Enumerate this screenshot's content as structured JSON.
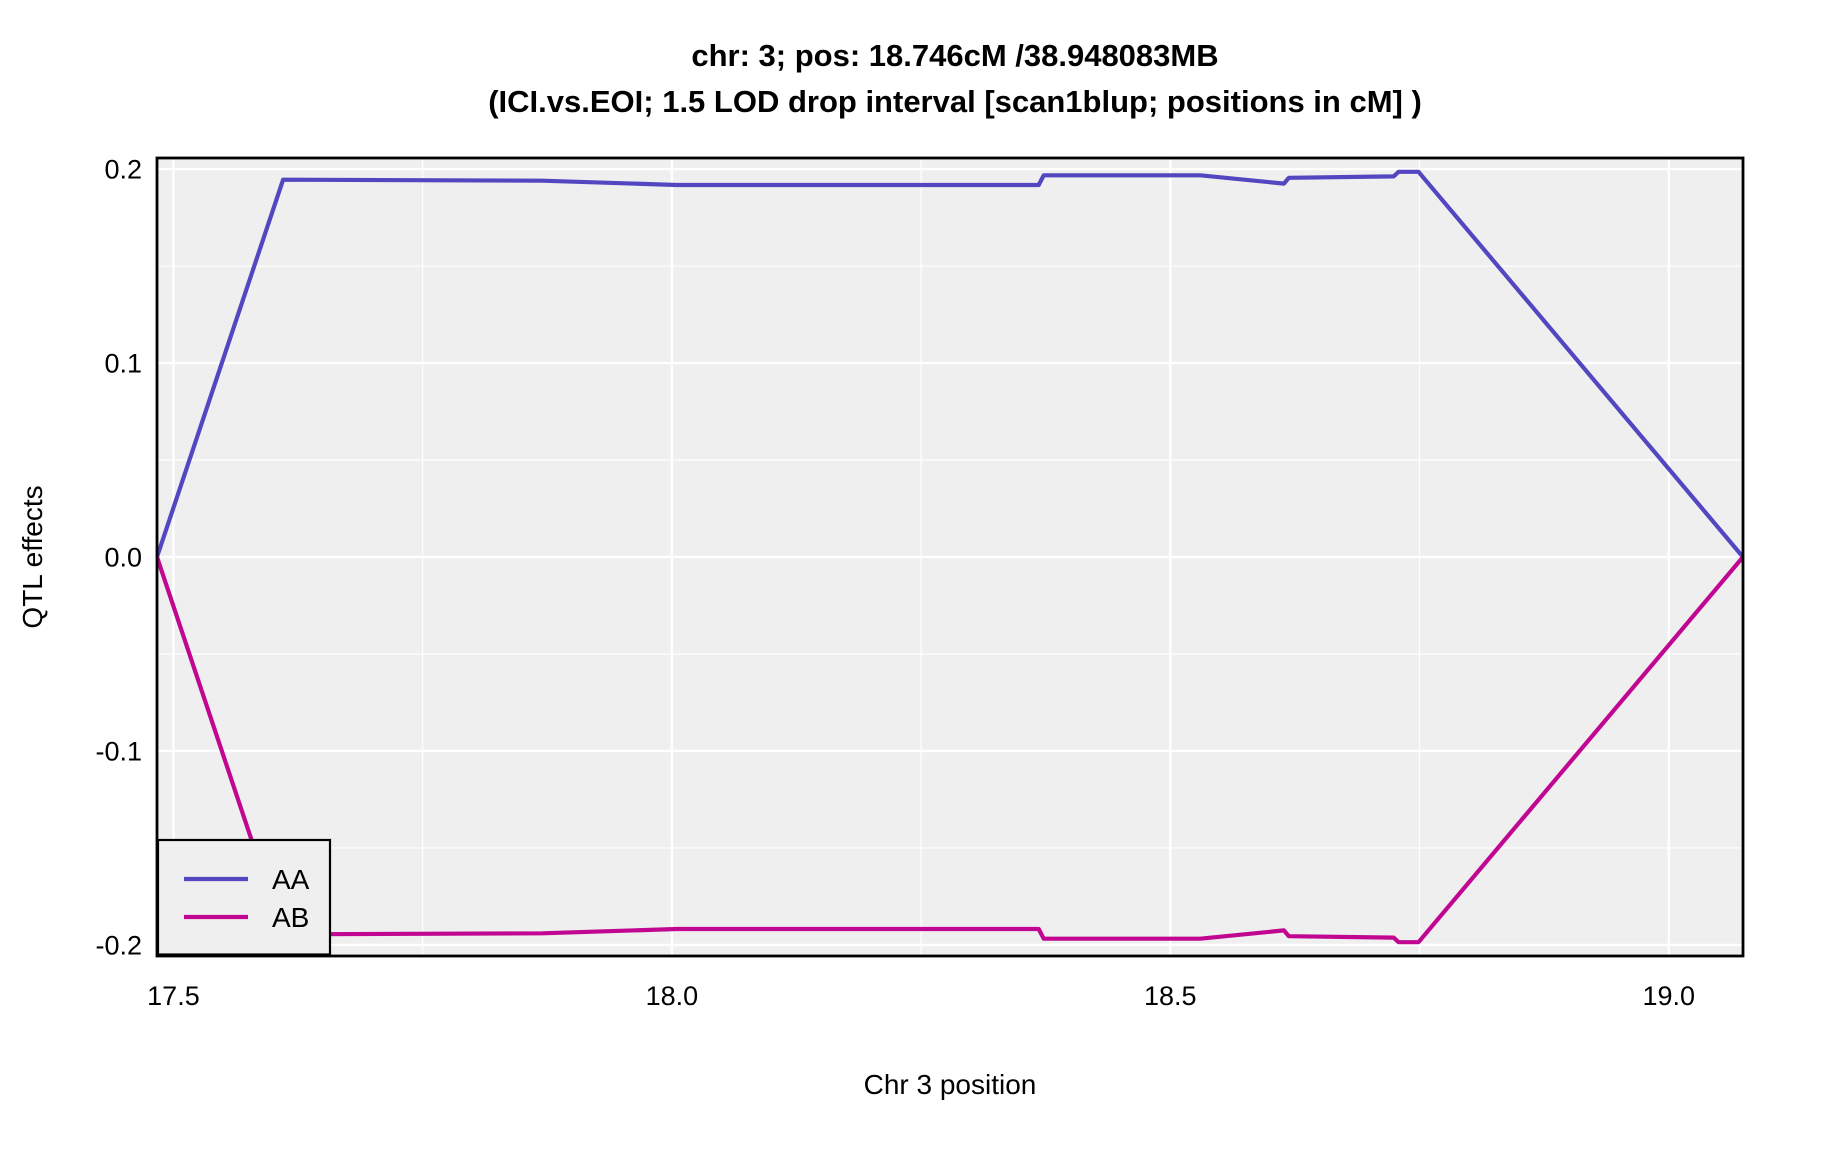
{
  "title": {
    "line1": "chr: 3; pos: 18.746cM /38.948083MB",
    "line2": "(ICI.vs.EOI; 1.5 LOD drop interval [scan1blup; positions in cM] )"
  },
  "axes": {
    "x": {
      "label": "Chr 3 position",
      "tick_labels": [
        "17.5",
        "18.0",
        "18.5",
        "19.0"
      ],
      "tick_values": [
        17.5,
        18.0,
        18.5,
        19.0
      ],
      "minor_tick_values": [
        17.75,
        18.25,
        18.75
      ],
      "range": [
        17.4835,
        19.0745
      ]
    },
    "y": {
      "label": "QTL effects",
      "tick_labels": [
        "0.2",
        "0.1",
        "0.0",
        "-0.1",
        "-0.2"
      ],
      "tick_values": [
        0.2,
        0.1,
        0.0,
        -0.1,
        -0.2
      ],
      "minor_tick_values": [
        0.15,
        0.05,
        -0.05,
        -0.15
      ],
      "range": [
        -0.2057,
        0.2057
      ]
    }
  },
  "legend": {
    "position": "bottom-left",
    "entries": [
      {
        "label": "AA",
        "color": "#5347C1"
      },
      {
        "label": "AB",
        "color": "#C10792"
      }
    ]
  },
  "colors": {
    "page_bg": "#FFFFFF",
    "panel_bg": "#EFEFEF",
    "grid_major": "#FFFFFF",
    "grid_minor": "#FFFFFF",
    "panel_border": "#000000",
    "series_aa": "#5347C1",
    "series_ab": "#C10792",
    "text": "#000000"
  },
  "chart_data": {
    "type": "line",
    "title": "chr: 3; pos: 18.746cM /38.948083MB (ICI.vs.EOI; 1.5 LOD drop interval [scan1blup; positions in cM] )",
    "xlabel": "Chr 3 position",
    "ylabel": "QTL effects",
    "xlim": [
      17.4835,
      19.0745
    ],
    "ylim": [
      -0.2057,
      0.2057
    ],
    "x_ticks": [
      17.5,
      18.0,
      18.5,
      19.0
    ],
    "y_ticks": [
      0.2,
      0.1,
      0.0,
      -0.1,
      -0.2
    ],
    "grid": true,
    "legend_position": "bottom-left",
    "series": [
      {
        "name": "AA",
        "color": "#5347C1",
        "points": [
          [
            17.4835,
            0.0
          ],
          [
            17.61,
            0.1945
          ],
          [
            17.87,
            0.194
          ],
          [
            18.005,
            0.1918
          ],
          [
            18.368,
            0.1918
          ],
          [
            18.373,
            0.1968
          ],
          [
            18.53,
            0.1968
          ],
          [
            18.614,
            0.1925
          ],
          [
            18.619,
            0.1955
          ],
          [
            18.724,
            0.1962
          ],
          [
            18.729,
            0.1986
          ],
          [
            18.749,
            0.1986
          ],
          [
            19.0745,
            0.0
          ]
        ]
      },
      {
        "name": "AB",
        "color": "#C10792",
        "points": [
          [
            17.4835,
            0.0
          ],
          [
            17.61,
            -0.1945
          ],
          [
            17.87,
            -0.194
          ],
          [
            18.005,
            -0.1918
          ],
          [
            18.368,
            -0.1918
          ],
          [
            18.373,
            -0.1968
          ],
          [
            18.53,
            -0.1968
          ],
          [
            18.614,
            -0.1925
          ],
          [
            18.619,
            -0.1955
          ],
          [
            18.724,
            -0.1962
          ],
          [
            18.729,
            -0.1986
          ],
          [
            18.749,
            -0.1986
          ],
          [
            19.0745,
            0.0
          ]
        ]
      }
    ]
  }
}
